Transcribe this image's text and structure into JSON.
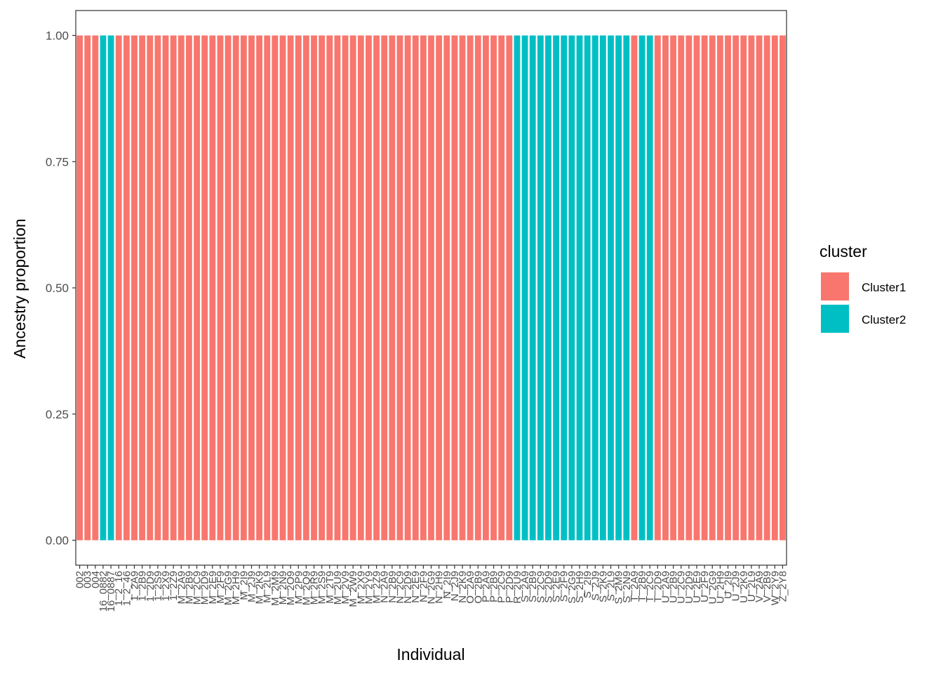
{
  "chart_data": {
    "type": "bar",
    "stacked": true,
    "title": "",
    "xlabel": "Individual",
    "ylabel": "Ancestry proportion",
    "ylim": [
      0,
      1
    ],
    "y_ticks": [
      "0.00",
      "0.25",
      "0.50",
      "0.75",
      "1.00"
    ],
    "grid": false,
    "legend": {
      "title": "cluster",
      "position": "right",
      "entries": [
        {
          "name": "Cluster1",
          "color": "#F8766D"
        },
        {
          "name": "Cluster2",
          "color": "#00BFC4"
        }
      ]
    },
    "categories": [
      "002",
      "003",
      "004",
      "16_0882",
      "16_0887",
      "1_2_16",
      "1_2_46",
      "1_2A9",
      "1_2B9",
      "1_2D9",
      "1_2S9",
      "1_2X9",
      "1_2Z9",
      "M_2A9",
      "M_2B9",
      "M_2C9",
      "M_2D9",
      "M_2E9",
      "M_2F9",
      "M_2G9",
      "M_2H9",
      "M_2I9",
      "M_2J9",
      "M_2K9",
      "M_2L9",
      "M_2M9",
      "M_2N9",
      "M_2O9",
      "M_2P9",
      "M_2Q9",
      "M_2R9",
      "M_2S9",
      "M_2T9",
      "M_2U9",
      "M_2V9",
      "M_2W9",
      "M_2X9",
      "M_2Y9",
      "M_2Z9",
      "N_2A9",
      "N_2B9",
      "N_2C9",
      "N_2D9",
      "N_2E9",
      "N_2F9",
      "N_2G9",
      "N_2H9",
      "N_2I9",
      "N_2J9",
      "N_2K9",
      "O_2A9",
      "O_2B9",
      "P_2A9",
      "P_2B9",
      "P_2C9",
      "P_2D9",
      "R_2U9",
      "S_2A9",
      "S_2B9",
      "S_2C9",
      "S_2D9",
      "S_2E9",
      "S_2F9",
      "S_2G9",
      "S_2H9",
      "S_2I9",
      "S_2J9",
      "S_2K9",
      "S_2L9",
      "S_2M9",
      "S_2N9",
      "T_2A9",
      "T_2B9",
      "T_2C9",
      "T_2D9",
      "U_2A9",
      "U_2B9",
      "U_2C9",
      "U_2D9",
      "U_2E9",
      "U_2F9",
      "U_2G9",
      "U_2H9",
      "U_2I9",
      "U_2J9",
      "U_2K9",
      "U_2L9",
      "V_2A9",
      "V_2B9",
      "W_2Y9",
      "Z_2Y8"
    ],
    "series": [
      {
        "name": "Cluster1",
        "values": [
          1,
          1,
          1,
          0,
          0,
          1,
          1,
          1,
          1,
          1,
          1,
          1,
          1,
          1,
          1,
          1,
          1,
          1,
          1,
          1,
          1,
          1,
          1,
          1,
          1,
          1,
          1,
          1,
          1,
          1,
          1,
          1,
          1,
          1,
          1,
          1,
          1,
          1,
          1,
          1,
          1,
          1,
          1,
          1,
          1,
          1,
          1,
          1,
          1,
          1,
          1,
          1,
          1,
          1,
          1,
          1,
          0,
          0,
          0,
          0,
          0,
          0,
          0,
          0,
          0,
          0,
          0,
          0,
          0,
          0,
          0,
          1,
          0,
          0,
          1,
          1,
          1,
          1,
          1,
          1,
          1,
          1,
          1,
          1,
          1,
          1,
          1,
          1,
          1,
          1,
          1
        ]
      },
      {
        "name": "Cluster2",
        "values": [
          0,
          0,
          0,
          1,
          1,
          0,
          0,
          0,
          0,
          0,
          0,
          0,
          0,
          0,
          0,
          0,
          0,
          0,
          0,
          0,
          0,
          0,
          0,
          0,
          0,
          0,
          0,
          0,
          0,
          0,
          0,
          0,
          0,
          0,
          0,
          0,
          0,
          0,
          0,
          0,
          0,
          0,
          0,
          0,
          0,
          0,
          0,
          0,
          0,
          0,
          0,
          0,
          0,
          0,
          0,
          0,
          1,
          1,
          1,
          1,
          1,
          1,
          1,
          1,
          1,
          1,
          1,
          1,
          1,
          1,
          1,
          0,
          1,
          1,
          0,
          0,
          0,
          0,
          0,
          0,
          0,
          0,
          0,
          0,
          0,
          0,
          0,
          0,
          0,
          0,
          0
        ]
      }
    ]
  }
}
